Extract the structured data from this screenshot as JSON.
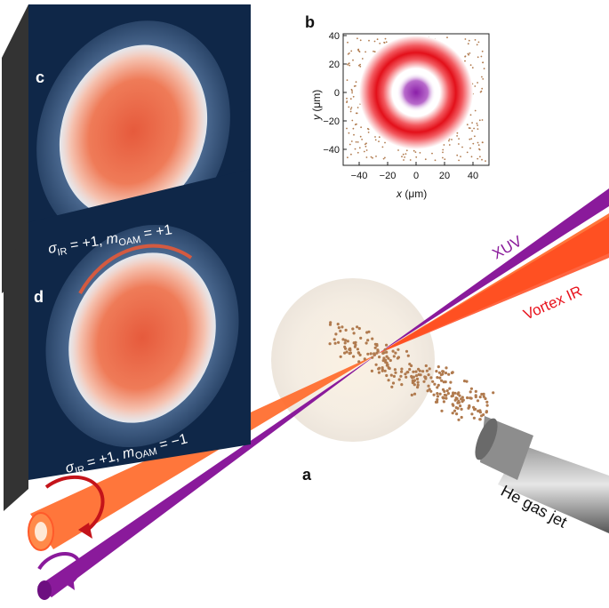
{
  "figure": {
    "labels": {
      "a": "a",
      "b": "b",
      "c": "c",
      "d": "d"
    },
    "beams": {
      "xuv_label": "XUV",
      "vortex_label": "Vortex IR",
      "jet_label": "He gas jet"
    },
    "panel_c": {
      "sigma": "σ",
      "sigma_sub": "IR",
      "sigma_value": " = +1, ",
      "m": "m",
      "m_sub": "OAM",
      "m_value": " = +1"
    },
    "panel_d": {
      "sigma": "σ",
      "sigma_sub": "IR",
      "sigma_value": " = +1, ",
      "m": "m",
      "m_sub": "OAM",
      "m_value": " = −1"
    },
    "inset_b": {
      "xlabel_var": "x",
      "xlabel_unit": " (μm)",
      "ylabel_var": "y",
      "ylabel_unit": " (μm)",
      "xticks": [
        "−40",
        "−20",
        "0",
        "20",
        "40"
      ],
      "yticks": [
        "40",
        "20",
        "0",
        "−20",
        "−40"
      ]
    }
  },
  "colors": {
    "xuv": "#8a1a9b",
    "ir": "#ff6a2a",
    "ring_red": "#e8121c",
    "center_purple": "#8b1fa8",
    "detector_bg": "#0f2748",
    "dots": "#b07a4e"
  }
}
